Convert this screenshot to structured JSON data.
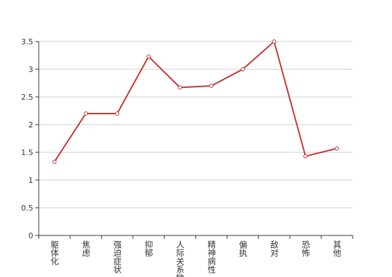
{
  "chart_data": {
    "type": "line",
    "categories": [
      "躯体化",
      "焦虑",
      "强迫症状",
      "抑郁",
      "人际关系敏感",
      "精神病性",
      "偏执",
      "敌对",
      "恐怖",
      "其他"
    ],
    "series": [
      {
        "color": "#c23531",
        "values": [
          1.33,
          2.2,
          2.2,
          3.23,
          2.67,
          2.7,
          3.0,
          3.5,
          1.43,
          1.57
        ]
      }
    ],
    "ylim": [
      0,
      3.5
    ],
    "yticks": [
      0,
      0.5,
      1,
      1.5,
      2,
      2.5,
      3,
      3.5
    ],
    "grid": true
  }
}
